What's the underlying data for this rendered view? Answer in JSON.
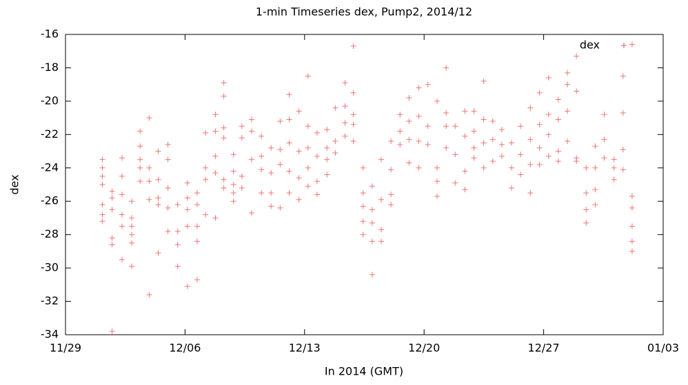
{
  "chart_data": {
    "type": "scatter",
    "title": "1-min Timeseries dex, Pump2, 2014/12",
    "x_label": "In 2014 (GMT)",
    "y_label": "dex",
    "xlim": [
      0,
      35
    ],
    "xticks": [
      {
        "value": 0,
        "label": "11/29"
      },
      {
        "value": 7,
        "label": "12/06"
      },
      {
        "value": 14,
        "label": "12/13"
      },
      {
        "value": 21,
        "label": "12/20"
      },
      {
        "value": 28,
        "label": "12/27"
      },
      {
        "value": 35,
        "label": "01/03"
      }
    ],
    "ylim": [
      -34,
      -16
    ],
    "yticks": [
      -34,
      -32,
      -30,
      -28,
      -26,
      -24,
      -22,
      -20,
      -18,
      -16
    ],
    "legend": "top-right",
    "x": [
      2.16,
      2.16,
      2.16,
      2.16,
      2.16,
      2.16,
      2.16,
      2.73,
      2.73,
      2.73,
      2.73,
      2.73,
      2.73,
      3.31,
      3.31,
      3.31,
      3.31,
      3.31,
      3.31,
      3.88,
      3.88,
      3.88,
      3.88,
      3.88,
      3.88,
      4.37,
      4.37,
      4.37,
      4.37,
      4.37,
      4.9,
      4.9,
      4.9,
      4.9,
      4.9,
      5.43,
      5.43,
      5.43,
      5.43,
      5.43,
      6.0,
      6.0,
      6.0,
      6.0,
      6.0,
      6.57,
      6.57,
      6.57,
      6.57,
      7.14,
      7.14,
      7.14,
      7.14,
      7.14,
      7.71,
      7.71,
      7.71,
      7.71,
      7.71,
      8.2,
      8.2,
      8.2,
      8.2,
      8.78,
      8.78,
      8.78,
      8.78,
      8.78,
      9.27,
      9.27,
      9.27,
      9.27,
      9.27,
      9.27,
      9.84,
      9.84,
      9.84,
      9.84,
      9.84,
      10.33,
      10.33,
      10.33,
      10.33,
      10.9,
      10.9,
      10.9,
      10.9,
      11.47,
      11.47,
      11.47,
      11.47,
      12.04,
      12.04,
      12.04,
      12.04,
      12.57,
      12.57,
      12.57,
      12.57,
      13.1,
      13.1,
      13.1,
      13.1,
      13.1,
      13.67,
      13.67,
      13.67,
      13.67,
      14.2,
      14.2,
      14.2,
      14.2,
      14.2,
      14.73,
      14.73,
      14.73,
      14.73,
      15.31,
      15.31,
      15.31,
      15.31,
      15.8,
      15.8,
      15.8,
      16.37,
      16.37,
      16.37,
      16.37,
      16.86,
      16.86,
      16.86,
      16.86,
      16.86,
      17.43,
      17.43,
      17.43,
      17.43,
      17.43,
      17.96,
      17.96,
      17.96,
      17.96,
      17.96,
      18.49,
      18.49,
      18.49,
      18.49,
      19.06,
      19.06,
      19.06,
      19.06,
      19.59,
      19.59,
      19.59,
      20.12,
      20.12,
      20.12,
      20.12,
      20.69,
      20.69,
      20.69,
      20.69,
      21.22,
      21.22,
      21.22,
      21.76,
      21.76,
      21.76,
      21.76,
      22.29,
      22.29,
      22.29,
      22.29,
      22.82,
      22.82,
      22.82,
      23.39,
      23.39,
      23.39,
      23.39,
      23.92,
      23.92,
      23.92,
      23.92,
      24.49,
      24.49,
      24.49,
      24.49,
      25.02,
      25.02,
      25.02,
      25.55,
      25.55,
      25.55,
      26.12,
      26.12,
      26.12,
      26.65,
      26.65,
      26.65,
      27.22,
      27.22,
      27.22,
      27.22,
      27.76,
      27.76,
      27.76,
      27.76,
      28.29,
      28.29,
      28.29,
      28.29,
      28.86,
      28.86,
      28.86,
      28.86,
      29.39,
      29.39,
      29.39,
      29.39,
      29.92,
      29.92,
      29.92,
      29.92,
      30.49,
      30.49,
      30.49,
      30.49,
      31.02,
      31.02,
      31.02,
      31.02,
      31.55,
      31.55,
      31.55,
      32.12,
      32.12,
      32.12,
      32.65,
      32.65,
      32.65,
      32.65,
      33.18,
      33.18,
      33.18,
      33.18,
      33.18,
      33.18
    ],
    "series": [
      {
        "name": "dex",
        "color": "#f05050",
        "values": [
          -23.5,
          -24,
          -24.5,
          -25,
          -26.2,
          -26.8,
          -27.2,
          -25.4,
          -25.8,
          -26.5,
          -28.2,
          -28.6,
          -33.8,
          -23.4,
          -24.5,
          -25.6,
          -26.8,
          -27.5,
          -29.5,
          -26,
          -27,
          -27.5,
          -28,
          -28.5,
          -29.9,
          -21.8,
          -22.7,
          -23.5,
          -24,
          -24.8,
          -21,
          -24,
          -24.8,
          -25.9,
          -31.6,
          -23,
          -24.7,
          -25.8,
          -26.2,
          -29.1,
          -22.6,
          -23.5,
          -25.2,
          -26.4,
          -27.8,
          -26.2,
          -27.8,
          -28.6,
          -29.9,
          -24.9,
          -25.8,
          -26.5,
          -27.5,
          -31.1,
          -25.5,
          -26.2,
          -27.5,
          -28.4,
          -30.7,
          -21.9,
          -24,
          -24.7,
          -26.8,
          -20.8,
          -21.8,
          -23.3,
          -24.3,
          -27,
          -18.9,
          -19.7,
          -21.6,
          -22.2,
          -24.7,
          -25.2,
          -23.2,
          -24.2,
          -25,
          -25.5,
          -26,
          -21.5,
          -22.2,
          -24.5,
          -25.2,
          -21.1,
          -21.8,
          -23.5,
          -26.7,
          -22.1,
          -23.3,
          -24.1,
          -25.5,
          -22.8,
          -24.3,
          -25.5,
          -26.3,
          -21.2,
          -22.9,
          -23.8,
          -26.4,
          -19.6,
          -21.1,
          -22.5,
          -24.2,
          -25.5,
          -20.6,
          -23,
          -24.6,
          -25.9,
          -18.5,
          -21.5,
          -22.8,
          -24,
          -25.1,
          -21.9,
          -23.3,
          -24.8,
          -25.6,
          -21.7,
          -22.8,
          -23.5,
          -24.4,
          -20.4,
          -22.4,
          -23.1,
          -18.9,
          -20.3,
          -21.3,
          -22.1,
          -16.7,
          -19.5,
          -20.8,
          -21.4,
          -22.4,
          -24,
          -25.5,
          -26.3,
          -27.2,
          -28,
          -25.1,
          -26.5,
          -27.3,
          -28.4,
          -30.4,
          -23.5,
          -25.9,
          -27.7,
          -28.4,
          -22.4,
          -24.1,
          -25.6,
          -26.2,
          -20.8,
          -21.8,
          -22.6,
          -19.8,
          -21.2,
          -22.3,
          -23.7,
          -19.2,
          -20.9,
          -22.4,
          -24,
          -19,
          -21.5,
          -22.6,
          -20,
          -24,
          -24.8,
          -25.7,
          -18,
          -20.7,
          -21.5,
          -22.8,
          -21.5,
          -23.2,
          -24.9,
          -20.6,
          -22.1,
          -24.2,
          -25.3,
          -20.6,
          -21.8,
          -22.8,
          -23.4,
          -18.8,
          -21.1,
          -22.5,
          -24,
          -21.2,
          -22.3,
          -23.6,
          -21.7,
          -22.6,
          -23.3,
          -22.5,
          -24,
          -25.2,
          -21.5,
          -23.2,
          -24.4,
          -20.4,
          -22.3,
          -23.8,
          -25.5,
          -19.5,
          -21.4,
          -22.8,
          -23.8,
          -18.6,
          -20.8,
          -22,
          -23.3,
          -19.9,
          -21.1,
          -23,
          -23.6,
          -18.3,
          -19,
          -20.6,
          -22.4,
          -17.3,
          -19.4,
          -23.4,
          -23.6,
          -24,
          -25.5,
          -26.5,
          -27.3,
          -22.7,
          -24,
          -25.3,
          -26.2,
          -20.8,
          -22.3,
          -23.4,
          -23.5,
          -24,
          -24.7,
          -18.5,
          -20.7,
          -22.9,
          -24.1,
          -16.6,
          -25.7,
          -26.4,
          -27.5,
          -28.4,
          -29
        ]
      }
    ]
  }
}
